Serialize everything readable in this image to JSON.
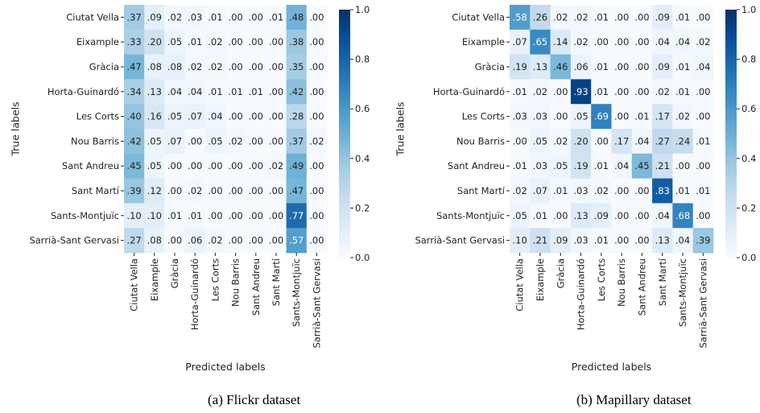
{
  "colors": {
    "low": "#f7fbff",
    "high": "#08306b",
    "light_text": "#ffffff",
    "dark_text": "#222222"
  },
  "chart_data": [
    {
      "type": "heatmap",
      "caption": "(a) Flickr dataset",
      "xlabel": "Predicted labels",
      "ylabel": "True labels",
      "rows": [
        "Ciutat Vella",
        "Eixample",
        "Gràcia",
        "Horta-Guinardó",
        "Les Corts",
        "Nou Barris",
        "Sant Andreu",
        "Sant Martí",
        "Sants-Montjuïc",
        "Sarrià-Sant Gervasi"
      ],
      "cols": [
        "Ciutat Vella",
        "Eixample",
        "Gràcia",
        "Horta-Guinardó",
        "Les Corts",
        "Nou Barris",
        "Sant Andreu",
        "Sant Martí",
        "Sants-Montjuïc",
        "Sarrià-Sant Gervasi"
      ],
      "values": [
        [
          0.37,
          0.09,
          0.02,
          0.03,
          0.01,
          0.0,
          0.0,
          0.01,
          0.48,
          0.0
        ],
        [
          0.33,
          0.2,
          0.05,
          0.01,
          0.02,
          0.0,
          0.0,
          0.0,
          0.38,
          0.0
        ],
        [
          0.47,
          0.08,
          0.08,
          0.02,
          0.02,
          0.0,
          0.0,
          0.0,
          0.35,
          0.0
        ],
        [
          0.34,
          0.13,
          0.04,
          0.04,
          0.01,
          0.01,
          0.01,
          0.0,
          0.42,
          0.0
        ],
        [
          0.4,
          0.16,
          0.05,
          0.07,
          0.04,
          0.0,
          0.0,
          0.0,
          0.28,
          0.0
        ],
        [
          0.42,
          0.05,
          0.07,
          0.0,
          0.05,
          0.02,
          0.0,
          0.0,
          0.37,
          0.02
        ],
        [
          0.45,
          0.05,
          0.0,
          0.0,
          0.0,
          0.0,
          0.0,
          0.02,
          0.49,
          0.0
        ],
        [
          0.39,
          0.12,
          0.0,
          0.02,
          0.0,
          0.0,
          0.0,
          0.0,
          0.47,
          0.0
        ],
        [
          0.1,
          0.1,
          0.01,
          0.01,
          0.0,
          0.0,
          0.0,
          0.0,
          0.77,
          0.0
        ],
        [
          0.27,
          0.08,
          0.0,
          0.06,
          0.02,
          0.0,
          0.0,
          0.0,
          0.57,
          0.0
        ]
      ],
      "colorbar": {
        "range": [
          0.0,
          1.0
        ],
        "ticks": [
          "0.0",
          "0.2",
          "0.4",
          "0.6",
          "0.8",
          "1.0"
        ]
      }
    },
    {
      "type": "heatmap",
      "caption": "(b) Mapillary dataset",
      "xlabel": "Predicted labels",
      "ylabel": "True labels",
      "rows": [
        "Ciutat Vella",
        "Eixample",
        "Gràcia",
        "Horta-Guinardó",
        "Les Corts",
        "Nou Barris",
        "Sant Andreu",
        "Sant Martí",
        "Sants-Montjuïc",
        "Sarrià-Sant Gervasi"
      ],
      "cols": [
        "Ciutat Vella",
        "Eixample",
        "Gràcia",
        "Horta-Guinardó",
        "Les Corts",
        "Nou Barris",
        "Sant Andreu",
        "Sant Martí",
        "Sants-Montjuïc",
        "Sarrià-Sant Gervasi"
      ],
      "values": [
        [
          0.58,
          0.26,
          0.02,
          0.02,
          0.01,
          0.0,
          0.0,
          0.09,
          0.01,
          0.0
        ],
        [
          0.07,
          0.65,
          0.14,
          0.02,
          0.0,
          0.0,
          0.0,
          0.04,
          0.04,
          0.02
        ],
        [
          0.19,
          0.13,
          0.46,
          0.06,
          0.01,
          0.0,
          0.0,
          0.09,
          0.01,
          0.04
        ],
        [
          0.01,
          0.02,
          0.0,
          0.93,
          0.01,
          0.0,
          0.0,
          0.02,
          0.01,
          0.0
        ],
        [
          0.03,
          0.03,
          0.0,
          0.05,
          0.69,
          0.0,
          0.01,
          0.17,
          0.02,
          0.0
        ],
        [
          0.0,
          0.05,
          0.02,
          0.2,
          0.0,
          0.17,
          0.04,
          0.27,
          0.24,
          0.01
        ],
        [
          0.01,
          0.03,
          0.05,
          0.19,
          0.01,
          0.04,
          0.45,
          0.21,
          0.0,
          0.0
        ],
        [
          0.02,
          0.07,
          0.01,
          0.03,
          0.02,
          0.0,
          0.0,
          0.83,
          0.01,
          0.01
        ],
        [
          0.05,
          0.01,
          0.0,
          0.13,
          0.09,
          0.0,
          0.0,
          0.04,
          0.68,
          0.0
        ],
        [
          0.1,
          0.21,
          0.09,
          0.03,
          0.01,
          0.0,
          0.0,
          0.13,
          0.04,
          0.39
        ]
      ],
      "colorbar": {
        "range": [
          0.0,
          1.0
        ],
        "ticks": [
          "0.0",
          "0.2",
          "0.4",
          "0.6",
          "0.8",
          "1.0"
        ]
      }
    }
  ]
}
